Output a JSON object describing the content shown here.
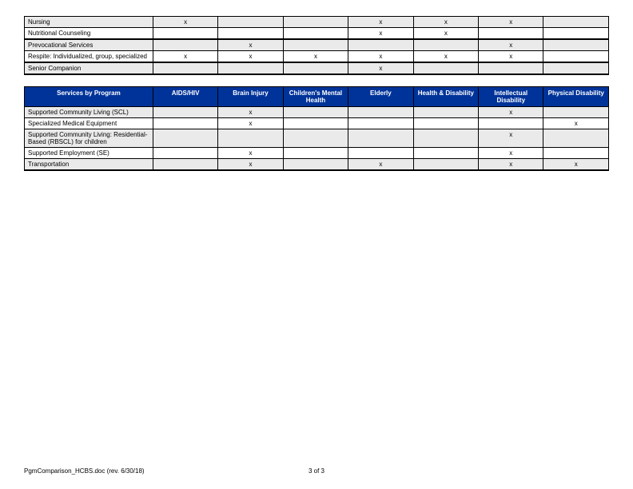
{
  "mark": "x",
  "topTable": {
    "columnWidths": {
      "label": "22%",
      "data": "11.14%"
    },
    "rows": [
      {
        "label": "Nursing",
        "shade": true,
        "heavy": false,
        "cells": [
          "x",
          "",
          "",
          "x",
          "x",
          "x",
          ""
        ]
      },
      {
        "label": "Nutritional Counseling",
        "shade": false,
        "heavy": false,
        "cells": [
          "",
          "",
          "",
          "x",
          "x",
          "",
          ""
        ]
      },
      {
        "label": "Prevocational Services",
        "shade": true,
        "heavy": true,
        "cells": [
          "",
          "x",
          "",
          "",
          "",
          "x",
          ""
        ]
      },
      {
        "label": "Respite: Individualized, group, specialized",
        "shade": false,
        "heavy": false,
        "cells": [
          "x",
          "x",
          "x",
          "x",
          "x",
          "x",
          ""
        ]
      },
      {
        "label": "Senior Companion",
        "shade": true,
        "heavy": true,
        "cells": [
          "",
          "",
          "",
          "x",
          "",
          "",
          ""
        ]
      }
    ]
  },
  "botTable": {
    "headers": [
      "Services by Program",
      "AIDS/HIV",
      "Brain Injury",
      "Children's Mental Health",
      "Elderly",
      "Health & Disability",
      "Intellectual Disability",
      "Physical Disability"
    ],
    "headerBg": "#003399",
    "headerColor": "#ffffff",
    "rows": [
      {
        "label": "Supported Community Living\n(SCL)",
        "shade": true,
        "cells": [
          "",
          "x",
          "",
          "",
          "",
          "x",
          ""
        ]
      },
      {
        "label": "Specialized Medical Equipment",
        "shade": false,
        "cells": [
          "",
          "x",
          "",
          "",
          "",
          "",
          "x"
        ]
      },
      {
        "label": "Supported Community Living: Residential-Based (RBSCL) for children",
        "shade": true,
        "cells": [
          "",
          "",
          "",
          "",
          "",
          "x",
          ""
        ]
      },
      {
        "label": "Supported Employment (SE)",
        "shade": false,
        "cells": [
          "",
          "x",
          "",
          "",
          "",
          "x",
          ""
        ]
      },
      {
        "label": "Transportation",
        "shade": true,
        "cells": [
          "",
          "x",
          "",
          "x",
          "",
          "x",
          "x"
        ]
      }
    ]
  },
  "footer": {
    "left": "PgmComparison_HCBS.doc (rev. 6/30/18)",
    "center": "3 of 3"
  }
}
